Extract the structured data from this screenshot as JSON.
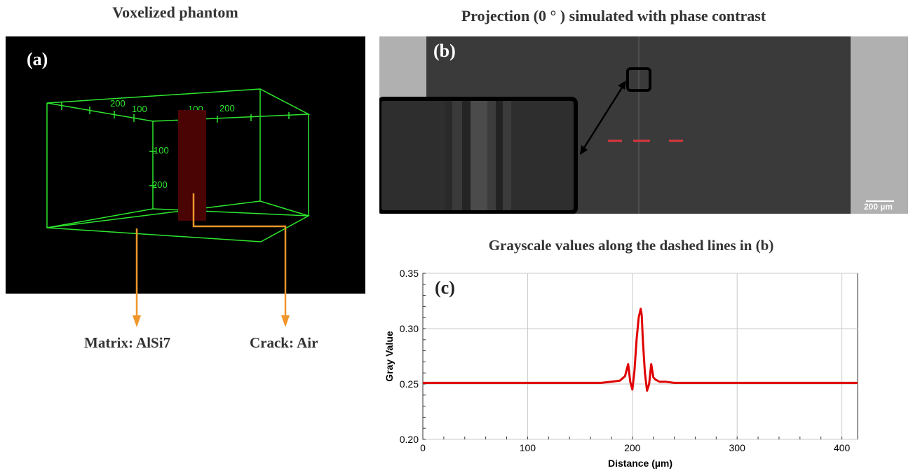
{
  "titles": {
    "a": "Voxelized phantom",
    "b": "Projection (0 ° ) simulated with phase contrast",
    "c": "Grayscale values along the dashed lines in (b)"
  },
  "panels": {
    "a_label": "(a)",
    "b_label": "(b)",
    "c_label": "(c)"
  },
  "phantom": {
    "tick_labels": [
      "200",
      "100",
      "100",
      "200",
      "100",
      "200"
    ],
    "matrix_label": "Matrix: AlSi7",
    "crack_label": "Crack: Air",
    "colors": {
      "box": "#2ee62e",
      "crack": "#4a0404",
      "arrow": "#f0962a"
    }
  },
  "projection": {
    "scalebar_label": "200 µm",
    "colors": {
      "background": "#3a3a3a",
      "side": "#b0b0b0",
      "dashed": "#d9363e"
    }
  },
  "chart_data": {
    "type": "line",
    "title": "Grayscale values along the dashed lines in (b)",
    "xlabel": "Distance (µm)",
    "ylabel": "Gray Value",
    "xlim": [
      0,
      415
    ],
    "ylim": [
      0.2,
      0.35
    ],
    "xticks": [
      0,
      100,
      200,
      300,
      400
    ],
    "yticks": [
      0.2,
      0.25,
      0.3,
      0.35
    ],
    "grid": true,
    "series": [
      {
        "color": "#e00000",
        "x": [
          0,
          170,
          180,
          188,
          193,
          196,
          198,
          200,
          202,
          204,
          206,
          208,
          209,
          210,
          212,
          214,
          216,
          218,
          220,
          222,
          226,
          232,
          240,
          250,
          415
        ],
        "y": [
          0.251,
          0.251,
          0.252,
          0.253,
          0.257,
          0.268,
          0.252,
          0.245,
          0.262,
          0.29,
          0.31,
          0.318,
          0.312,
          0.29,
          0.26,
          0.244,
          0.25,
          0.268,
          0.256,
          0.254,
          0.252,
          0.252,
          0.251,
          0.251,
          0.251
        ]
      }
    ]
  }
}
